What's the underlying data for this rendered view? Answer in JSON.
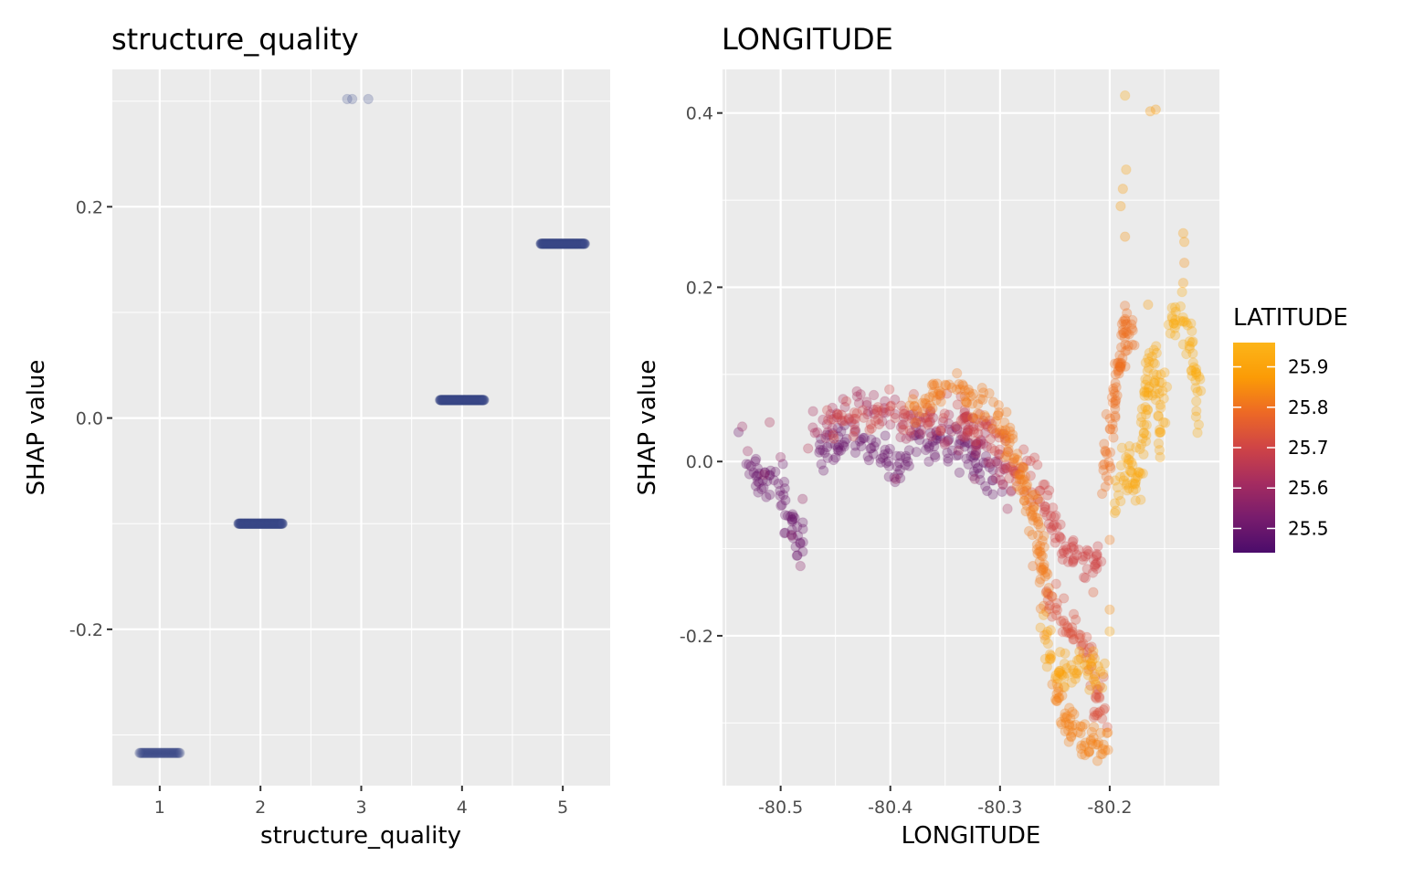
{
  "chart_data": [
    {
      "type": "scatter",
      "title": "structure_quality",
      "xlabel": "structure_quality",
      "ylabel": "SHAP value",
      "xlim": [
        0.53,
        5.47
      ],
      "ylim": [
        -0.348,
        0.33
      ],
      "xticks": [
        {
          "v": 1,
          "label": "1"
        },
        {
          "v": 2,
          "label": "2"
        },
        {
          "v": 3,
          "label": "3"
        },
        {
          "v": 4,
          "label": "4"
        },
        {
          "v": 5,
          "label": "5"
        }
      ],
      "yticks": [
        {
          "v": -0.2,
          "label": "-0.2"
        },
        {
          "v": 0.0,
          "label": "0.0"
        },
        {
          "v": 0.2,
          "label": "0.2"
        }
      ],
      "grid": true,
      "point_color": "#3b4a8a",
      "clusters": [
        {
          "x_center": 1,
          "x_spread": 0.2,
          "y": -0.317,
          "count": 50
        },
        {
          "x_center": 2,
          "x_spread": 0.22,
          "y": -0.1,
          "count": 140
        },
        {
          "x_center": 3,
          "x_spread": 0.1,
          "y": 0.302,
          "count": 3
        },
        {
          "x_center": 4,
          "x_spread": 0.22,
          "y": 0.017,
          "count": 140
        },
        {
          "x_center": 5,
          "x_spread": 0.22,
          "y": 0.165,
          "count": 140
        }
      ],
      "sparse_points": [
        {
          "x": 2.86,
          "y": 0.302
        },
        {
          "x": 2.91,
          "y": 0.302
        },
        {
          "x": 3.07,
          "y": 0.302
        }
      ]
    },
    {
      "type": "scatter",
      "title": "LONGITUDE",
      "xlabel": "LONGITUDE",
      "ylabel": "SHAP value",
      "xlim": [
        -80.553,
        -80.1
      ],
      "ylim": [
        -0.372,
        0.45
      ],
      "xticks": [
        {
          "v": -80.5,
          "label": "-80.5"
        },
        {
          "v": -80.4,
          "label": "-80.4"
        },
        {
          "v": -80.3,
          "label": "-80.3"
        },
        {
          "v": -80.2,
          "label": "-80.2"
        }
      ],
      "yticks": [
        {
          "v": -0.2,
          "label": "-0.2"
        },
        {
          "v": 0.0,
          "label": "0.0"
        },
        {
          "v": 0.2,
          "label": "0.2"
        },
        {
          "v": 0.4,
          "label": "0.4"
        }
      ],
      "grid": true,
      "color_var": "LATITUDE",
      "color_range": [
        25.44,
        25.96
      ],
      "colors": [
        "#4b0c6b",
        "#781c6d",
        "#a52c60",
        "#cf4446",
        "#ed6925",
        "#fb9b06",
        "#fcb519"
      ],
      "legend": {
        "title": "LATITUDE",
        "placement": "right",
        "ticks": [
          25.5,
          25.6,
          25.7,
          25.8,
          25.9
        ],
        "tick_labels": [
          "25.5",
          "25.6",
          "25.7",
          "25.8",
          "25.9"
        ]
      },
      "bands": [
        {
          "lat": 25.5,
          "pts": [
            [
              -80.535,
              0.02
            ],
            [
              -80.52,
              -0.02
            ],
            [
              -80.5,
              -0.03
            ],
            [
              -80.49,
              -0.07
            ],
            [
              -80.48,
              -0.1
            ]
          ]
        },
        {
          "lat": 25.5,
          "pts": [
            [
              -80.47,
              0.0
            ],
            [
              -80.45,
              0.02
            ],
            [
              -80.43,
              0.025
            ],
            [
              -80.41,
              0.005
            ],
            [
              -80.39,
              0.0
            ],
            [
              -80.37,
              0.02
            ],
            [
              -80.35,
              0.015
            ],
            [
              -80.33,
              0.02
            ],
            [
              -80.32,
              -0.01
            ],
            [
              -80.3,
              -0.03
            ]
          ]
        },
        {
          "lat": 25.62,
          "pts": [
            [
              -80.47,
              0.04
            ],
            [
              -80.44,
              0.055
            ],
            [
              -80.41,
              0.055
            ],
            [
              -80.38,
              0.04
            ],
            [
              -80.35,
              0.035
            ],
            [
              -80.33,
              0.04
            ],
            [
              -80.31,
              0.01
            ],
            [
              -80.29,
              -0.03
            ]
          ]
        },
        {
          "lat": 25.7,
          "pts": [
            [
              -80.46,
              0.04
            ],
            [
              -80.43,
              0.05
            ],
            [
              -80.4,
              0.055
            ],
            [
              -80.37,
              0.05
            ],
            [
              -80.34,
              0.055
            ],
            [
              -80.32,
              0.04
            ],
            [
              -80.3,
              0.02
            ],
            [
              -80.28,
              -0.01
            ],
            [
              -80.26,
              -0.04
            ],
            [
              -80.25,
              -0.07
            ],
            [
              -80.24,
              -0.1
            ],
            [
              -80.22,
              -0.11
            ],
            [
              -80.21,
              -0.12
            ]
          ]
        },
        {
          "lat": 25.82,
          "pts": [
            [
              -80.38,
              0.06
            ],
            [
              -80.36,
              0.075
            ],
            [
              -80.34,
              0.08
            ],
            [
              -80.32,
              0.07
            ],
            [
              -80.3,
              0.05
            ],
            [
              -80.29,
              0.02
            ],
            [
              -80.28,
              -0.02
            ],
            [
              -80.27,
              -0.05
            ],
            [
              -80.265,
              -0.09
            ],
            [
              -80.26,
              -0.13
            ],
            [
              -80.255,
              -0.17
            ]
          ]
        },
        {
          "lat": 25.73,
          "pts": [
            [
              -80.26,
              -0.15
            ],
            [
              -80.24,
              -0.18
            ],
            [
              -80.225,
              -0.21
            ],
            [
              -80.21,
              -0.26
            ],
            [
              -80.205,
              -0.3
            ]
          ]
        },
        {
          "lat": 25.9,
          "pts": [
            [
              -80.26,
              -0.2
            ],
            [
              -80.25,
              -0.23
            ],
            [
              -80.235,
              -0.24
            ],
            [
              -80.22,
              -0.235
            ],
            [
              -80.205,
              -0.24
            ]
          ]
        },
        {
          "lat": 25.83,
          "pts": [
            [
              -80.25,
              -0.27
            ],
            [
              -80.24,
              -0.3
            ],
            [
              -80.23,
              -0.32
            ],
            [
              -80.215,
              -0.33
            ],
            [
              -80.205,
              -0.32
            ]
          ]
        },
        {
          "lat": 25.8,
          "pts": [
            [
              -80.205,
              -0.02
            ],
            [
              -80.2,
              0.03
            ],
            [
              -80.195,
              0.08
            ],
            [
              -80.19,
              0.12
            ],
            [
              -80.185,
              0.15
            ],
            [
              -80.18,
              0.16
            ]
          ]
        },
        {
          "lat": 25.92,
          "pts": [
            [
              -80.195,
              -0.05
            ],
            [
              -80.185,
              0.0
            ],
            [
              -80.175,
              -0.03
            ],
            [
              -80.17,
              0.04
            ],
            [
              -80.165,
              0.08
            ],
            [
              -80.16,
              0.12
            ],
            [
              -80.155,
              0.03
            ],
            [
              -80.15,
              0.1
            ]
          ]
        },
        {
          "lat": 25.93,
          "pts": [
            [
              -80.145,
              0.15
            ],
            [
              -80.135,
              0.18
            ],
            [
              -80.125,
              0.12
            ],
            [
              -80.118,
              0.06
            ]
          ]
        }
      ],
      "sparse_points": [
        {
          "x": -80.535,
          "y": 0.04,
          "lat": 25.6
        },
        {
          "x": -80.53,
          "y": 0.012,
          "lat": 25.6
        },
        {
          "x": -80.51,
          "y": 0.045,
          "lat": 25.63
        },
        {
          "x": -80.515,
          "y": -0.015,
          "lat": 25.58
        },
        {
          "x": -80.5,
          "y": 0.005,
          "lat": 25.58
        },
        {
          "x": -80.49,
          "y": -0.085,
          "lat": 25.56
        },
        {
          "x": -80.482,
          "y": -0.12,
          "lat": 25.56
        },
        {
          "x": -80.48,
          "y": -0.043,
          "lat": 25.58
        },
        {
          "x": -80.475,
          "y": 0.015,
          "lat": 25.65
        },
        {
          "x": -80.323,
          "y": -0.02,
          "lat": 25.58
        },
        {
          "x": -80.395,
          "y": -0.02,
          "lat": 25.6
        },
        {
          "x": -80.186,
          "y": 0.42,
          "lat": 25.92
        },
        {
          "x": -80.163,
          "y": 0.402,
          "lat": 25.87
        },
        {
          "x": -80.158,
          "y": 0.404,
          "lat": 25.87
        },
        {
          "x": -80.185,
          "y": 0.335,
          "lat": 25.9
        },
        {
          "x": -80.188,
          "y": 0.313,
          "lat": 25.88
        },
        {
          "x": -80.19,
          "y": 0.293,
          "lat": 25.88
        },
        {
          "x": -80.186,
          "y": 0.258,
          "lat": 25.86
        },
        {
          "x": -80.133,
          "y": 0.262,
          "lat": 25.88
        },
        {
          "x": -80.132,
          "y": 0.252,
          "lat": 25.88
        },
        {
          "x": -80.132,
          "y": 0.228,
          "lat": 25.85
        },
        {
          "x": -80.133,
          "y": 0.205,
          "lat": 25.88
        },
        {
          "x": -80.12,
          "y": 0.08,
          "lat": 25.93
        },
        {
          "x": -80.121,
          "y": 0.058,
          "lat": 25.92
        },
        {
          "x": -80.12,
          "y": 0.033,
          "lat": 25.93
        },
        {
          "x": -80.165,
          "y": 0.18,
          "lat": 25.88
        },
        {
          "x": -80.2,
          "y": -0.17,
          "lat": 25.85
        },
        {
          "x": -80.2,
          "y": -0.195,
          "lat": 25.92
        },
        {
          "x": -80.2,
          "y": -0.09,
          "lat": 25.82
        },
        {
          "x": -80.215,
          "y": -0.15,
          "lat": 25.75
        },
        {
          "x": -80.27,
          "y": -0.12,
          "lat": 25.8
        }
      ]
    }
  ]
}
